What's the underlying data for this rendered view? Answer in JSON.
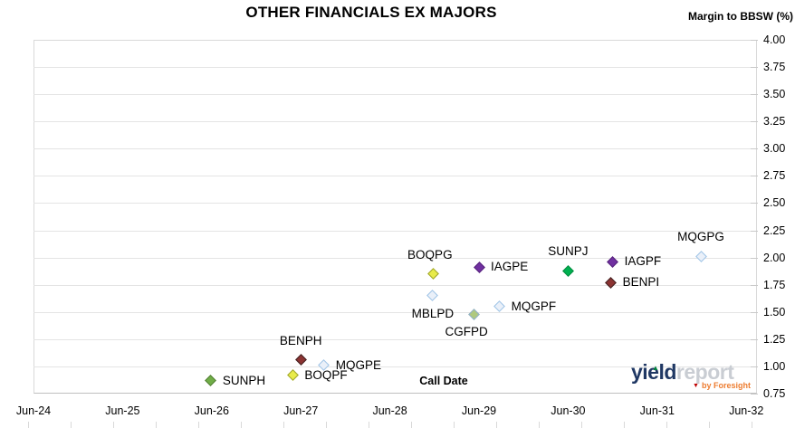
{
  "header": {
    "title": "OTHER FINANCIALS EX MAJORS",
    "y_axis_title": "Margin to BBSW (%)"
  },
  "chart_data": {
    "type": "scatter",
    "title": "OTHER FINANCIALS EX MAJORS",
    "xlabel": "Call Date",
    "ylabel": "Margin to BBSW (%)",
    "x_ticks": [
      "Jun-24",
      "Jun-25",
      "Jun-26",
      "Jun-27",
      "Jun-28",
      "Jun-29",
      "Jun-30",
      "Jun-31",
      "Jun-32"
    ],
    "y_tick_labels": [
      "4.00",
      "3.75",
      "3.50",
      "3.25",
      "3.00",
      "2.75",
      "2.50",
      "2.25",
      "2.00",
      "1.75",
      "1.50",
      "1.25",
      "1.00",
      "0.75"
    ],
    "ylim": [
      0.75,
      4.0
    ],
    "y_tick_step": 0.25,
    "grid": "horizontal",
    "legend": "none",
    "points": [
      {
        "name": "SUNPH",
        "call_date_est": "Jun-26",
        "x_years_after_jun24": 1.99,
        "margin_pct": 0.87,
        "fill": "#70AD47",
        "stroke": "#507E32",
        "label_pos": "right"
      },
      {
        "name": "BOQPF",
        "call_date_est": "May-27",
        "x_years_after_jun24": 2.91,
        "margin_pct": 0.92,
        "fill": "#E8EB4A",
        "stroke": "#9DA42A",
        "label_pos": "right"
      },
      {
        "name": "BENPH",
        "call_date_est": "Jun-27",
        "x_years_after_jun24": 3.0,
        "margin_pct": 1.06,
        "fill": "#8B3332",
        "stroke": "#402020",
        "label_pos": "above"
      },
      {
        "name": "MQGPE",
        "call_date_est": "Sep-27",
        "x_years_after_jun24": 3.26,
        "margin_pct": 1.01,
        "fill": "#EAF0F9",
        "stroke": "#9DC3E6",
        "label_pos": "right"
      },
      {
        "name": "MBLPD",
        "call_date_est": "Nov-28",
        "x_years_after_jun24": 4.48,
        "margin_pct": 1.65,
        "fill": "#EAF0F9",
        "stroke": "#9DC3E6",
        "label_pos": "below"
      },
      {
        "name": "BOQPG",
        "call_date_est": "Dec-28",
        "x_years_after_jun24": 4.49,
        "margin_pct": 1.85,
        "fill": "#E8EB4A",
        "stroke": "#9DA42A",
        "label_pos": "above",
        "label_dx": -4
      },
      {
        "name": "CGFPD",
        "call_date_est": "May-29",
        "x_years_after_jun24": 4.94,
        "margin_pct": 1.48,
        "fill": "#AFC97E",
        "stroke": "#8FAECE",
        "label_pos": "below",
        "label_dx": -8
      },
      {
        "name": "IAGPE",
        "call_date_est": "Jun-29",
        "x_years_after_jun24": 5.0,
        "margin_pct": 1.91,
        "fill": "#7030A0",
        "stroke": "#54217A",
        "label_pos": "right"
      },
      {
        "name": "MQGPF",
        "call_date_est": "Sep-29",
        "x_years_after_jun24": 5.23,
        "margin_pct": 1.55,
        "fill": "#EAF0F9",
        "stroke": "#9DC3E6",
        "label_pos": "right"
      },
      {
        "name": "SUNPJ",
        "call_date_est": "Jun-30",
        "x_years_after_jun24": 6.0,
        "margin_pct": 1.88,
        "fill": "#00B050",
        "stroke": "#008A3E",
        "label_pos": "above"
      },
      {
        "name": "IAGPF",
        "call_date_est": "Dec-30",
        "x_years_after_jun24": 6.5,
        "margin_pct": 1.96,
        "fill": "#7030A0",
        "stroke": "#54217A",
        "label_pos": "right"
      },
      {
        "name": "BENPI",
        "call_date_est": "Nov-30",
        "x_years_after_jun24": 6.48,
        "margin_pct": 1.77,
        "fill": "#8B3332",
        "stroke": "#402020",
        "label_pos": "right"
      },
      {
        "name": "MQGPG",
        "call_date_est": "Dec-31",
        "x_years_after_jun24": 7.49,
        "margin_pct": 2.01,
        "fill": "#EAF0F9",
        "stroke": "#9DC3E6",
        "label_pos": "above"
      }
    ]
  },
  "footer": {
    "logo": {
      "part1": "yield",
      "part2": "report",
      "byline": "by Foresight",
      "triangle_up_color": "#00813C",
      "triangle_down_color": "#C00000"
    }
  },
  "colors": {
    "gridline": "#E4E4E4",
    "axis_line": "#BFBFBF",
    "plot_border": "#D9D9D9",
    "text": "#000000"
  }
}
